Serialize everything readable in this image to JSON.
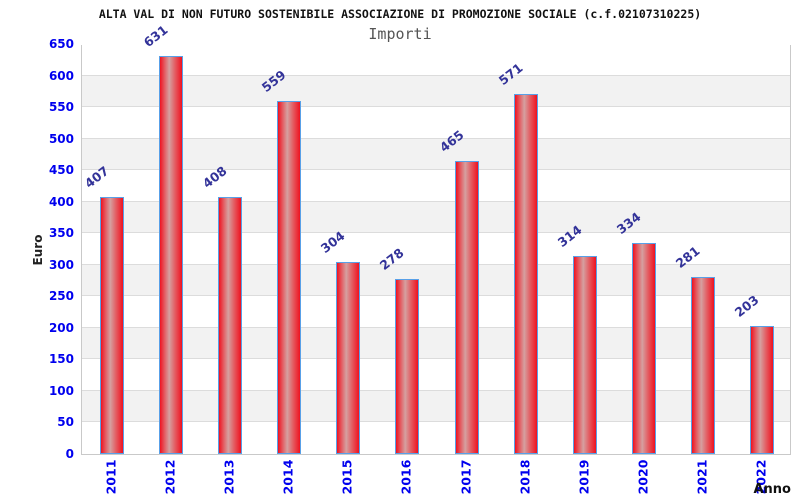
{
  "header": {
    "title": "ALTA VAL DI NON FUTURO SOSTENIBILE ASSOCIAZIONE DI PROMOZIONE SOCIALE (c.f.02107310225)",
    "subtitle": "Importi"
  },
  "chart_data": {
    "type": "bar",
    "title": "Importi",
    "categories": [
      "2011",
      "2012",
      "2013",
      "2014",
      "2015",
      "2016",
      "2017",
      "2018",
      "2019",
      "2020",
      "2021",
      "2022"
    ],
    "values": [
      407,
      631,
      408,
      559,
      304,
      278,
      465,
      571,
      314,
      334,
      281,
      203
    ],
    "xlabel": "Anno",
    "ylabel": "Euro",
    "ylim": [
      0,
      650
    ],
    "yticks": [
      0,
      50,
      100,
      150,
      200,
      250,
      300,
      350,
      400,
      450,
      500,
      550,
      600,
      650
    ],
    "grid": "horizontal alternating 50-unit bands",
    "legend_position": "none",
    "colors": {
      "bar_edge_red": "#ef1220",
      "bar_mid_red": "#e4595f",
      "bar_center_highlight": "#d5a0a0",
      "bar_border_blue": "#58a0e8",
      "value_label": "#333399",
      "axis_tick_label": "#0000ee",
      "band_gray": "#f2f2f2",
      "band_white": "#ffffff",
      "gridline": "#dcdcdc",
      "plot_border": "#c9c9c9",
      "title": "#111111",
      "subtitle": "#555555",
      "axis_title": "#222222"
    }
  }
}
